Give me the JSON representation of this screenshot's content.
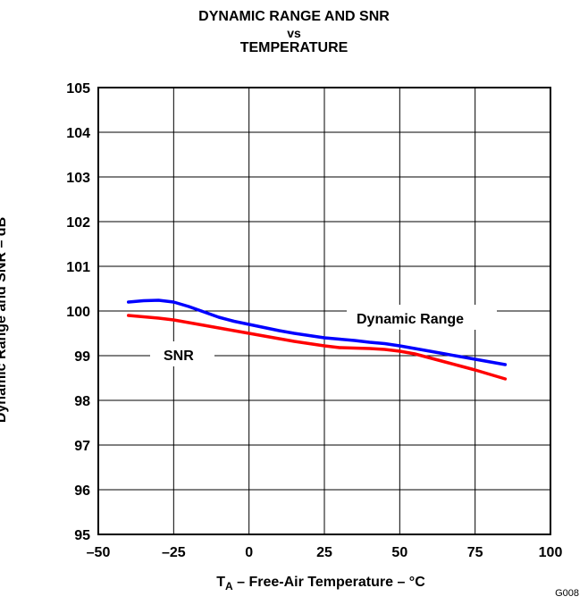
{
  "chart_data": {
    "type": "line",
    "title": [
      "DYNAMIC RANGE AND SNR",
      "vs",
      "TEMPERATURE"
    ],
    "xlabel_main": "T",
    "xlabel_sub": "A",
    "xlabel_rest": " – Free-Air Temperature – °C",
    "ylabel": "Dynamic Range and SNR – dB",
    "xlim": [
      -50,
      100
    ],
    "ylim": [
      95,
      105
    ],
    "xticks": [
      -50,
      -25,
      0,
      25,
      50,
      75,
      100
    ],
    "xtick_labels": [
      "–50",
      "–25",
      "0",
      "25",
      "50",
      "75",
      "100"
    ],
    "yticks": [
      95,
      96,
      97,
      98,
      99,
      100,
      101,
      102,
      103,
      104,
      105
    ],
    "grid": true,
    "series": [
      {
        "name": "Dynamic Range",
        "color": "#0000ff",
        "x": [
          -40,
          -35,
          -30,
          -25,
          -20,
          -15,
          -10,
          -5,
          0,
          5,
          10,
          15,
          20,
          25,
          30,
          35,
          40,
          45,
          50,
          55,
          60,
          65,
          70,
          75,
          80,
          85
        ],
        "y": [
          100.2,
          100.23,
          100.24,
          100.2,
          100.1,
          99.98,
          99.86,
          99.77,
          99.7,
          99.63,
          99.56,
          99.5,
          99.45,
          99.4,
          99.37,
          99.34,
          99.3,
          99.27,
          99.22,
          99.16,
          99.1,
          99.04,
          98.98,
          98.92,
          98.86,
          98.8
        ]
      },
      {
        "name": "SNR",
        "color": "#ff0000",
        "x": [
          -40,
          -35,
          -30,
          -25,
          -20,
          -15,
          -10,
          -5,
          0,
          5,
          10,
          15,
          20,
          25,
          30,
          35,
          40,
          45,
          50,
          55,
          60,
          65,
          70,
          75,
          80,
          85
        ],
        "y": [
          99.9,
          99.87,
          99.84,
          99.8,
          99.74,
          99.68,
          99.62,
          99.56,
          99.5,
          99.44,
          99.38,
          99.32,
          99.27,
          99.22,
          99.18,
          99.17,
          99.16,
          99.14,
          99.1,
          99.04,
          98.95,
          98.86,
          98.77,
          98.68,
          98.58,
          98.48
        ]
      }
    ],
    "annotations": [
      "Dynamic Range",
      "SNR"
    ]
  },
  "figure_id": "G008"
}
